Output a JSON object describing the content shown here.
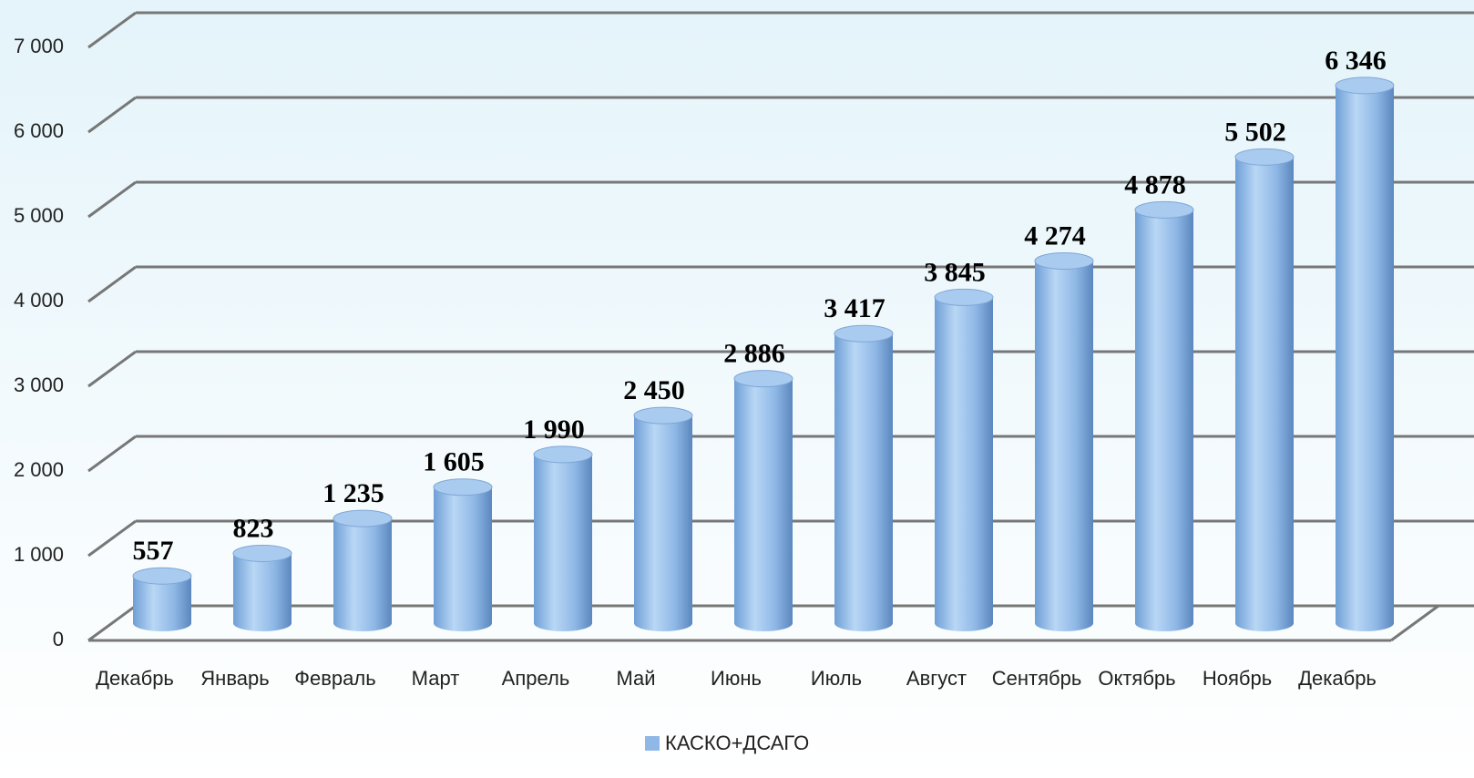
{
  "chart_data": {
    "type": "bar3d",
    "categories": [
      "Декабрь",
      "Январь",
      "Февраль",
      "Март",
      "Апрель",
      "Май",
      "Июнь",
      "Июль",
      "Август",
      "Сентябрь",
      "Октябрь",
      "Ноябрь",
      "Декабрь"
    ],
    "series": [
      {
        "name": "КАСКО+ДСАГО",
        "color": "#8fb8e6",
        "values": [
          557,
          823,
          1235,
          1605,
          1990,
          2450,
          2886,
          3417,
          3845,
          4274,
          4878,
          5502,
          6346
        ],
        "value_labels": [
          "557",
          "823",
          "1 235",
          "1 605",
          "1 990",
          "2 450",
          "2 886",
          "3 417",
          "3 845",
          "4 274",
          "4 878",
          "5 502",
          "6 346"
        ]
      }
    ],
    "ylim": [
      0,
      7000
    ],
    "yticks": [
      0,
      {
        "value": 1000,
        "label": "1 000"
      },
      {
        "value": 2000,
        "label": "2 000"
      },
      {
        "value": 3000,
        "label": "3 000"
      },
      {
        "value": 4000,
        "label": "4 000"
      },
      {
        "value": 5000,
        "label": "5 000"
      },
      {
        "value": 6000,
        "label": "6 000"
      },
      {
        "value": 7000,
        "label": "7 000"
      }
    ],
    "grid": true,
    "legend": "bottom"
  }
}
